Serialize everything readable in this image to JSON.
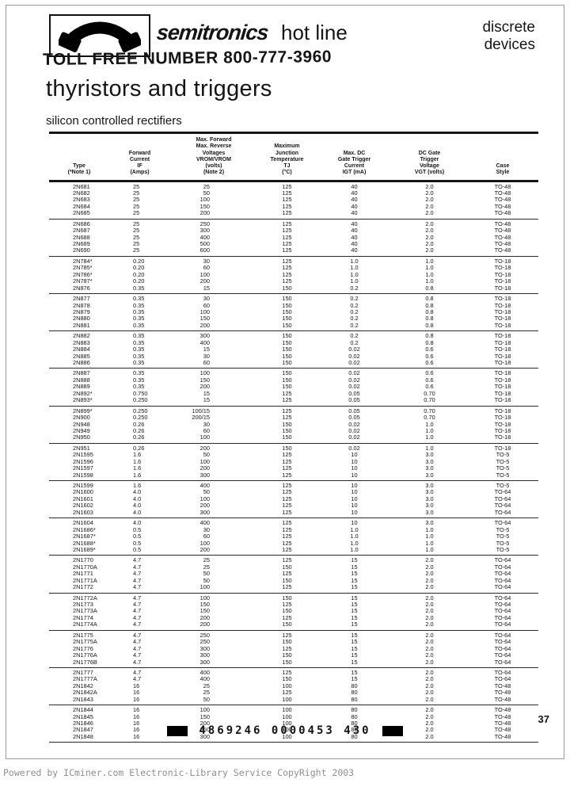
{
  "header": {
    "brand": "semitronics",
    "brand_suffix": "hot line",
    "right_line1": "discrete",
    "right_line2": "devices",
    "toll_free": "TOLL FREE NUMBER 800-777-3960"
  },
  "page": {
    "title": "thyristors and triggers",
    "subtitle": "silicon controlled rectifiers",
    "page_number": "37",
    "barcode_text": "4869246 0000453 430",
    "watermark": "Powered by ICminer.com Electronic-Library Service CopyRight 2003"
  },
  "icons": {
    "logo": "phone-handset-icon"
  },
  "colors": {
    "ink": "#151515",
    "watermark_gray": "#8f8f8f",
    "paper": "#ffffff"
  },
  "table": {
    "columns": [
      {
        "lines": [
          "Type",
          "(*Note 1)"
        ]
      },
      {
        "lines": [
          "Forward",
          "Current",
          "IF",
          "(Amps)"
        ]
      },
      {
        "lines": [
          "Max. Forward",
          "Max. Reverse",
          "Voltages",
          "VROM/VROM",
          "(volts)",
          "(Note 2)"
        ]
      },
      {
        "lines": [
          "Maximum",
          "Junction",
          "Temperature",
          "TJ",
          "(°C)"
        ]
      },
      {
        "lines": [
          "Max. DC",
          "Gate Trigger",
          "Current",
          "IGT (mA)"
        ]
      },
      {
        "lines": [
          "DC Gate",
          "Trigger",
          "Voltage",
          "VGT (volts)"
        ]
      },
      {
        "lines": [
          "Case",
          "Style"
        ]
      }
    ],
    "groups": [
      [
        [
          "2N681",
          "25",
          "25",
          "125",
          "40",
          "2.0",
          "TO-48"
        ],
        [
          "2N682",
          "25",
          "50",
          "125",
          "40",
          "2.0",
          "TO-48"
        ],
        [
          "2N683",
          "25",
          "100",
          "125",
          "40",
          "2.0",
          "TO-48"
        ],
        [
          "2N684",
          "25",
          "150",
          "125",
          "40",
          "2.0",
          "TO-48"
        ],
        [
          "2N685",
          "25",
          "200",
          "125",
          "40",
          "2.0",
          "TO-48"
        ]
      ],
      [
        [
          "2N686",
          "25",
          "250",
          "125",
          "40",
          "2.0",
          "TO-48"
        ],
        [
          "2N687",
          "25",
          "300",
          "125",
          "40",
          "2.0",
          "TO-48"
        ],
        [
          "2N688",
          "25",
          "400",
          "125",
          "40",
          "2.0",
          "TO-48"
        ],
        [
          "2N689",
          "25",
          "500",
          "125",
          "40",
          "2.0",
          "TO-48"
        ],
        [
          "2N690",
          "25",
          "600",
          "125",
          "40",
          "2.0",
          "TO-48"
        ]
      ],
      [
        [
          "2N784*",
          "0.20",
          "30",
          "125",
          "1.0",
          "1.0",
          "TO-18"
        ],
        [
          "2N785*",
          "0.20",
          "60",
          "125",
          "1.0",
          "1.0",
          "TO-18"
        ],
        [
          "2N786*",
          "0.20",
          "100",
          "125",
          "1.0",
          "1.0",
          "TO-18"
        ],
        [
          "2N787*",
          "0.20",
          "200",
          "125",
          "1.0",
          "1.0",
          "TO-18"
        ],
        [
          "2N876",
          "0.35",
          "15",
          "150",
          "0.2",
          "0.8",
          "TO-18"
        ]
      ],
      [
        [
          "2N877",
          "0.35",
          "30",
          "150",
          "0.2",
          "0.8",
          "TO-18"
        ],
        [
          "2N878",
          "0.35",
          "60",
          "150",
          "0.2",
          "0.8",
          "TO-18"
        ],
        [
          "2N879",
          "0.35",
          "100",
          "150",
          "0.2",
          "0.8",
          "TO-18"
        ],
        [
          "2N880",
          "0.35",
          "150",
          "150",
          "0.2",
          "0.8",
          "TO-18"
        ],
        [
          "2N881",
          "0.35",
          "200",
          "150",
          "0.2",
          "0.8",
          "TO-18"
        ]
      ],
      [
        [
          "2N882",
          "0.35",
          "300",
          "150",
          "0.2",
          "0.8",
          "TO-18"
        ],
        [
          "2N883",
          "0.35",
          "400",
          "150",
          "0.2",
          "0.8",
          "TO-18"
        ],
        [
          "2N884",
          "0.35",
          "15",
          "150",
          "0.02",
          "0.6",
          "TO-18"
        ],
        [
          "2N885",
          "0.35",
          "30",
          "150",
          "0.02",
          "0.6",
          "TO-18"
        ],
        [
          "2N886",
          "0.35",
          "60",
          "150",
          "0.02",
          "0.6",
          "TO-18"
        ]
      ],
      [
        [
          "2N887",
          "0.35",
          "100",
          "150",
          "0.02",
          "0.6",
          "TO-18"
        ],
        [
          "2N888",
          "0.35",
          "150",
          "150",
          "0.02",
          "0.6",
          "TO-18"
        ],
        [
          "2N889",
          "0.35",
          "200",
          "150",
          "0.02",
          "0.6",
          "TO-18"
        ],
        [
          "2N892*",
          "0.750",
          "15",
          "125",
          "0.05",
          "0.70",
          "TO-18"
        ],
        [
          "2N893*",
          "0.250",
          "15",
          "125",
          "0.05",
          "0.70",
          "TO-18"
        ]
      ],
      [
        [
          "2N899*",
          "0.250",
          "100/15",
          "125",
          "0.05",
          "0.70",
          "TO-18"
        ],
        [
          "2N900",
          "0.250",
          "200/15",
          "125",
          "0.05",
          "0.70",
          "TO-18"
        ],
        [
          "2N948",
          "0.26",
          "30",
          "150",
          "0.02",
          "1.0",
          "TO-18"
        ],
        [
          "2N949",
          "0.26",
          "60",
          "150",
          "0.02",
          "1.0",
          "TO-18"
        ],
        [
          "2N950",
          "0.26",
          "100",
          "150",
          "0.02",
          "1.0",
          "TO-18"
        ]
      ],
      [
        [
          "2N951",
          "0.26",
          "200",
          "150",
          "0.02",
          "1.0",
          "TO-18"
        ],
        [
          "2N1595",
          "1.6",
          "50",
          "125",
          "10",
          "3.0",
          "TO-5"
        ],
        [
          "2N1596",
          "1.6",
          "100",
          "125",
          "10",
          "3.0",
          "TO-5"
        ],
        [
          "2N1597",
          "1.6",
          "200",
          "125",
          "10",
          "3.0",
          "TO-5"
        ],
        [
          "2N1598",
          "1.6",
          "300",
          "125",
          "10",
          "3.0",
          "TO-5"
        ]
      ],
      [
        [
          "2N1599",
          "1.6",
          "400",
          "125",
          "10",
          "3.0",
          "TO-5"
        ],
        [
          "2N1600",
          "4.0",
          "50",
          "125",
          "10",
          "3.0",
          "TO-64"
        ],
        [
          "2N1601",
          "4.0",
          "100",
          "125",
          "10",
          "3.0",
          "TO-64"
        ],
        [
          "2N1602",
          "4.0",
          "200",
          "125",
          "10",
          "3.0",
          "TO-64"
        ],
        [
          "2N1603",
          "4.0",
          "300",
          "125",
          "10",
          "3.0",
          "TO-64"
        ]
      ],
      [
        [
          "2N1604",
          "4.0",
          "400",
          "125",
          "10",
          "3.0",
          "TO-64"
        ],
        [
          "2N1686*",
          "0.5",
          "30",
          "125",
          "1.0",
          "1.0",
          "TO-5"
        ],
        [
          "2N1687*",
          "0.5",
          "60",
          "125",
          "1.0",
          "1.0",
          "TO-5"
        ],
        [
          "2N1688*",
          "0.5",
          "100",
          "125",
          "1.0",
          "1.0",
          "TO-5"
        ],
        [
          "2N1689*",
          "0.5",
          "200",
          "125",
          "1.0",
          "1.0",
          "TO-5"
        ]
      ],
      [
        [
          "2N1770",
          "4.7",
          "25",
          "125",
          "15",
          "2.0",
          "TO-64"
        ],
        [
          "2N1770A",
          "4.7",
          "25",
          "150",
          "15",
          "2.0",
          "TO-64"
        ],
        [
          "2N1771",
          "4.7",
          "50",
          "125",
          "15",
          "2.0",
          "TO-64"
        ],
        [
          "2N1771A",
          "4.7",
          "50",
          "150",
          "15",
          "2.0",
          "TO-64"
        ],
        [
          "2N1772",
          "4.7",
          "100",
          "125",
          "15",
          "2.0",
          "TO-64"
        ]
      ],
      [
        [
          "2N1772A",
          "4.7",
          "100",
          "150",
          "15",
          "2.0",
          "TO-64"
        ],
        [
          "2N1773",
          "4.7",
          "150",
          "125",
          "15",
          "2.0",
          "TO-64"
        ],
        [
          "2N1773A",
          "4.7",
          "150",
          "150",
          "15",
          "2.0",
          "TO-64"
        ],
        [
          "2N1774",
          "4.7",
          "200",
          "125",
          "15",
          "2.0",
          "TO-64"
        ],
        [
          "2N1774A",
          "4.7",
          "200",
          "150",
          "15",
          "2.0",
          "TO-64"
        ]
      ],
      [
        [
          "2N1775",
          "4.7",
          "250",
          "125",
          "15",
          "2.0",
          "TO-64"
        ],
        [
          "2N1775A",
          "4.7",
          "250",
          "150",
          "15",
          "2.0",
          "TO-64"
        ],
        [
          "2N1776",
          "4.7",
          "300",
          "125",
          "15",
          "2.0",
          "TO-64"
        ],
        [
          "2N1776A",
          "4.7",
          "300",
          "150",
          "15",
          "2.0",
          "TO-64"
        ],
        [
          "2N1776B",
          "4.7",
          "300",
          "150",
          "15",
          "2.0",
          "TO-64"
        ]
      ],
      [
        [
          "2N1777",
          "4.7",
          "400",
          "125",
          "15",
          "2.0",
          "TO-64"
        ],
        [
          "2N1777A",
          "4.7",
          "400",
          "150",
          "15",
          "2.0",
          "TO-64"
        ],
        [
          "2N1842",
          "16",
          "25",
          "100",
          "80",
          "2.0",
          "TO-48"
        ],
        [
          "2N1842A",
          "16",
          "25",
          "125",
          "80",
          "2.0",
          "TO-48"
        ],
        [
          "2N1843",
          "16",
          "50",
          "100",
          "80",
          "2.0",
          "TO-48"
        ]
      ],
      [
        [
          "2N1844",
          "16",
          "100",
          "100",
          "80",
          "2.0",
          "TO-48"
        ],
        [
          "2N1845",
          "16",
          "150",
          "100",
          "80",
          "2.0",
          "TO-48"
        ],
        [
          "2N1846",
          "16",
          "200",
          "100",
          "80",
          "2.0",
          "TO-48"
        ],
        [
          "2N1847",
          "16",
          "250",
          "100",
          "80",
          "2.0",
          "TO-48"
        ],
        [
          "2N1848",
          "16",
          "300",
          "100",
          "80",
          "2.0",
          "TO-48"
        ]
      ]
    ]
  }
}
